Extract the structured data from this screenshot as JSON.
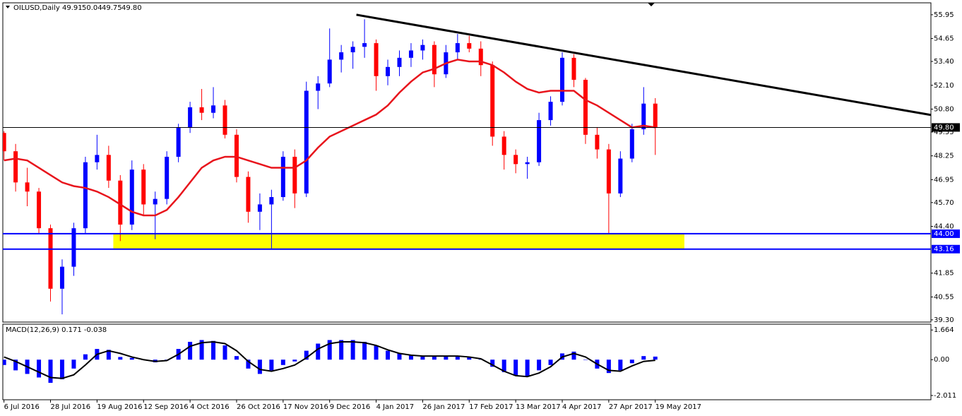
{
  "header": {
    "symbol": "OILUSD,Daily",
    "quote": [
      "49.91",
      "50.04",
      "49.75",
      "49.80"
    ]
  },
  "chart_data": [
    {
      "type": "candlestick",
      "categories": [
        "6 Jul 2016",
        null,
        null,
        null,
        "28 Jul 2016",
        null,
        null,
        null,
        "19 Aug 2016",
        null,
        null,
        null,
        "12 Sep 2016",
        null,
        null,
        null,
        "4 Oct 2016",
        null,
        null,
        null,
        "26 Oct 2016",
        null,
        null,
        null,
        "17 Nov 2016",
        null,
        null,
        null,
        "9 Dec 2016",
        null,
        null,
        null,
        "4 Jan 2017",
        null,
        null,
        null,
        "26 Jan 2017",
        null,
        null,
        null,
        "17 Feb 2017",
        null,
        null,
        null,
        "13 Mar 2017",
        null,
        null,
        null,
        "4 Apr 2017",
        null,
        null,
        null,
        "27 Apr 2017",
        null,
        null,
        null,
        "19 May 2017"
      ],
      "open": [
        49.5,
        48.5,
        46.8,
        46.3,
        44.3,
        41.0,
        42.2,
        44.3,
        47.9,
        48.3,
        46.9,
        44.5,
        47.5,
        45.6,
        45.9,
        48.2,
        49.8,
        50.9,
        50.6,
        51.0,
        49.4,
        47.1,
        45.2,
        45.6,
        46.0,
        48.2,
        46.2,
        51.8,
        52.2,
        53.5,
        53.9,
        54.2,
        54.4,
        52.6,
        53.1,
        53.6,
        54.0,
        54.3,
        52.7,
        53.9,
        54.4,
        54.1,
        53.2,
        49.3,
        48.3,
        47.8,
        47.9,
        50.2,
        51.2,
        53.6,
        52.4,
        49.4,
        48.6,
        46.2,
        48.1,
        49.7,
        51.1
      ],
      "high": [
        49.6,
        48.9,
        47.6,
        46.5,
        44.5,
        42.6,
        44.6,
        48.2,
        49.4,
        48.8,
        47.2,
        48.0,
        47.8,
        46.3,
        48.5,
        50.0,
        51.2,
        51.9,
        52.0,
        51.3,
        49.7,
        47.4,
        46.2,
        46.4,
        48.5,
        48.6,
        52.3,
        52.6,
        55.2,
        54.3,
        54.5,
        55.7,
        54.6,
        53.5,
        54.0,
        54.4,
        54.6,
        54.5,
        54.3,
        54.9,
        54.8,
        54.5,
        53.4,
        49.6,
        48.6,
        48.2,
        50.6,
        51.5,
        53.9,
        53.8,
        52.5,
        49.8,
        48.9,
        48.5,
        50.0,
        52.0,
        51.4
      ],
      "low": [
        48.0,
        46.3,
        45.5,
        44.0,
        40.3,
        39.6,
        41.7,
        44.0,
        47.5,
        46.5,
        43.6,
        44.2,
        45.0,
        43.7,
        45.6,
        47.9,
        49.5,
        50.2,
        50.3,
        49.2,
        46.8,
        44.6,
        44.2,
        43.2,
        45.8,
        45.4,
        46.0,
        50.8,
        52.0,
        52.8,
        53.0,
        53.6,
        51.8,
        52.1,
        52.6,
        53.1,
        53.5,
        52.0,
        52.5,
        53.5,
        53.9,
        52.6,
        48.8,
        47.5,
        47.3,
        47.0,
        47.7,
        49.9,
        51.0,
        52.0,
        48.9,
        48.1,
        44.0,
        46.0,
        47.9,
        49.4,
        48.3
      ],
      "close": [
        48.5,
        46.8,
        46.3,
        44.3,
        41.0,
        42.2,
        44.3,
        47.9,
        48.3,
        46.9,
        44.5,
        47.5,
        45.6,
        45.9,
        48.2,
        49.8,
        50.9,
        50.6,
        51.0,
        49.4,
        47.1,
        45.2,
        45.6,
        46.0,
        48.2,
        46.2,
        51.8,
        52.2,
        53.5,
        53.9,
        54.2,
        54.4,
        52.6,
        53.1,
        53.6,
        54.0,
        54.3,
        52.7,
        53.9,
        54.4,
        54.1,
        53.2,
        49.3,
        48.3,
        47.8,
        47.9,
        50.2,
        51.2,
        53.6,
        52.4,
        49.4,
        48.6,
        46.2,
        48.1,
        49.7,
        51.1,
        49.8
      ],
      "up_color": "#0000ff",
      "down_color": "#ff0000",
      "ma": {
        "color": "#e8141c",
        "values": [
          48.0,
          48.1,
          48.0,
          47.6,
          47.2,
          46.8,
          46.6,
          46.5,
          46.3,
          46.0,
          45.6,
          45.2,
          45.0,
          45.0,
          45.3,
          46.0,
          46.8,
          47.6,
          48.0,
          48.2,
          48.2,
          48.0,
          47.8,
          47.6,
          47.6,
          47.6,
          48.0,
          48.7,
          49.3,
          49.6,
          49.9,
          50.2,
          50.5,
          51.0,
          51.7,
          52.3,
          52.8,
          53.0,
          53.3,
          53.5,
          53.4,
          53.4,
          53.2,
          52.8,
          52.3,
          51.9,
          51.7,
          51.8,
          51.8,
          51.8,
          51.3,
          51.0,
          50.6,
          50.2,
          49.8,
          49.9,
          49.8
        ]
      },
      "trendline": {
        "x": [
          30.3,
          79.7
        ],
        "values": [
          55.95,
          50.48
        ],
        "color": "#000000"
      },
      "levels": [
        {
          "value": 44.0,
          "label": "44.00",
          "color": "#0000ff"
        },
        {
          "value": 43.16,
          "label": "43.16",
          "color": "#0000ff"
        },
        {
          "value": 49.8,
          "label": "49.80",
          "color": "#000000"
        }
      ],
      "zone": {
        "x": [
          9.4,
          58.5
        ],
        "color": "#ffff00"
      },
      "xlim": [
        -0.1,
        79.7
      ],
      "ylim": [
        39.18,
        56.6
      ],
      "yticks": [
        55.95,
        54.65,
        {
          "value": 53.4,
          "label": "53.40"
        },
        {
          "value": 52.1,
          "label": "52.10"
        },
        {
          "value": 50.8,
          "label": "50.80"
        },
        49.55,
        48.25,
        46.95,
        {
          "value": 45.7,
          "label": "45.70"
        },
        {
          "value": 44.4,
          "label": "44.40"
        },
        41.85,
        40.55,
        {
          "value": 39.3,
          "label": "39.30"
        }
      ]
    },
    {
      "type": "macd",
      "title": "MACD(12,26,9) 0.171 -0.038",
      "color": "#0000ff",
      "values": [
        -0.3,
        -0.6,
        -0.8,
        -1.0,
        -1.3,
        -1.1,
        -0.5,
        0.3,
        0.6,
        0.55,
        0.15,
        0.1,
        0.0,
        -0.15,
        -0.05,
        0.6,
        1.0,
        1.1,
        1.05,
        0.8,
        0.2,
        -0.5,
        -0.8,
        -0.6,
        -0.3,
        -0.1,
        0.5,
        0.9,
        1.1,
        1.1,
        1.1,
        1.0,
        0.8,
        0.5,
        0.35,
        0.25,
        0.2,
        0.2,
        0.2,
        0.2,
        0.15,
        0.05,
        -0.4,
        -0.7,
        -0.9,
        -0.95,
        -0.6,
        -0.3,
        0.35,
        0.45,
        0.0,
        -0.5,
        -0.75,
        -0.6,
        -0.2,
        0.2,
        0.171
      ],
      "signal": {
        "color": "#000000",
        "values": [
          0.15,
          -0.1,
          -0.4,
          -0.7,
          -1.0,
          -1.05,
          -0.85,
          -0.3,
          0.3,
          0.5,
          0.35,
          0.15,
          0.0,
          -0.1,
          -0.05,
          0.3,
          0.75,
          0.95,
          1.0,
          0.9,
          0.5,
          -0.1,
          -0.55,
          -0.65,
          -0.5,
          -0.3,
          0.1,
          0.6,
          0.9,
          1.0,
          1.0,
          0.95,
          0.8,
          0.55,
          0.35,
          0.25,
          0.2,
          0.2,
          0.2,
          0.2,
          0.15,
          0.05,
          -0.3,
          -0.65,
          -0.9,
          -0.95,
          -0.75,
          -0.4,
          0.15,
          0.35,
          0.15,
          -0.25,
          -0.6,
          -0.65,
          -0.35,
          -0.1,
          -0.038
        ]
      },
      "ylim": [
        -2.25,
        1.99
      ],
      "yticks": [
        1.664,
        {
          "value": 0,
          "label": "0.00"
        },
        -2.011
      ]
    }
  ]
}
